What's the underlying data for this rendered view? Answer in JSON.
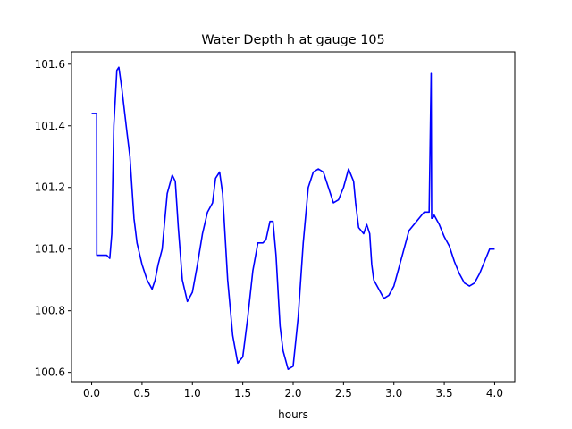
{
  "chart_data": {
    "type": "line",
    "title": "Water Depth h at gauge 105",
    "xlabel": "hours",
    "ylabel": "",
    "xlim": [
      -0.2,
      4.2
    ],
    "ylim": [
      100.57,
      101.64
    ],
    "xticks": [
      0.0,
      0.5,
      1.0,
      1.5,
      2.0,
      2.5,
      3.0,
      3.5,
      4.0
    ],
    "xtick_labels": [
      "0.0",
      "0.5",
      "1.0",
      "1.5",
      "2.0",
      "2.5",
      "3.0",
      "3.5",
      "4.0"
    ],
    "yticks": [
      100.6,
      100.8,
      101.0,
      101.2,
      101.4,
      101.6
    ],
    "ytick_labels": [
      "100.6",
      "100.8",
      "101.0",
      "101.2",
      "101.4",
      "101.6"
    ],
    "grid": false,
    "series": [
      {
        "color": "#0000ff",
        "x": [
          0.0,
          0.05,
          0.051,
          0.1,
          0.15,
          0.18,
          0.2,
          0.22,
          0.25,
          0.27,
          0.3,
          0.35,
          0.38,
          0.42,
          0.45,
          0.5,
          0.55,
          0.6,
          0.63,
          0.66,
          0.7,
          0.75,
          0.8,
          0.83,
          0.86,
          0.9,
          0.95,
          1.0,
          1.05,
          1.1,
          1.15,
          1.2,
          1.23,
          1.27,
          1.3,
          1.35,
          1.4,
          1.45,
          1.5,
          1.55,
          1.6,
          1.65,
          1.7,
          1.73,
          1.77,
          1.8,
          1.83,
          1.87,
          1.9,
          1.95,
          2.0,
          2.05,
          2.1,
          2.15,
          2.2,
          2.25,
          2.3,
          2.35,
          2.4,
          2.45,
          2.5,
          2.55,
          2.6,
          2.62,
          2.65,
          2.7,
          2.73,
          2.76,
          2.78,
          2.8,
          2.85,
          2.9,
          2.95,
          3.0,
          3.05,
          3.1,
          3.15,
          3.2,
          3.25,
          3.3,
          3.35,
          3.37,
          3.375,
          3.38,
          3.385,
          3.4,
          3.45,
          3.5,
          3.55,
          3.6,
          3.65,
          3.7,
          3.75,
          3.8,
          3.85,
          3.9,
          3.95,
          4.0
        ],
        "y": [
          101.44,
          101.44,
          100.98,
          100.98,
          100.98,
          100.97,
          101.05,
          101.4,
          101.58,
          101.59,
          101.52,
          101.38,
          101.3,
          101.1,
          101.02,
          100.95,
          100.9,
          100.87,
          100.9,
          100.95,
          101.0,
          101.18,
          101.24,
          101.22,
          101.07,
          100.9,
          100.83,
          100.86,
          100.95,
          101.05,
          101.12,
          101.15,
          101.23,
          101.25,
          101.18,
          100.9,
          100.72,
          100.63,
          100.65,
          100.78,
          100.93,
          101.02,
          101.02,
          101.03,
          101.09,
          101.09,
          100.98,
          100.75,
          100.67,
          100.61,
          100.62,
          100.78,
          101.02,
          101.2,
          101.25,
          101.26,
          101.25,
          101.2,
          101.15,
          101.16,
          101.2,
          101.26,
          101.22,
          101.15,
          101.07,
          101.05,
          101.08,
          101.05,
          100.95,
          100.9,
          100.87,
          100.84,
          100.85,
          100.88,
          100.94,
          101.0,
          101.06,
          101.08,
          101.1,
          101.12,
          101.12,
          101.57,
          101.1,
          101.1,
          101.1,
          101.11,
          101.08,
          101.04,
          101.01,
          100.96,
          100.92,
          100.89,
          100.88,
          100.89,
          100.92,
          100.96,
          101.0,
          101.0
        ]
      }
    ]
  }
}
